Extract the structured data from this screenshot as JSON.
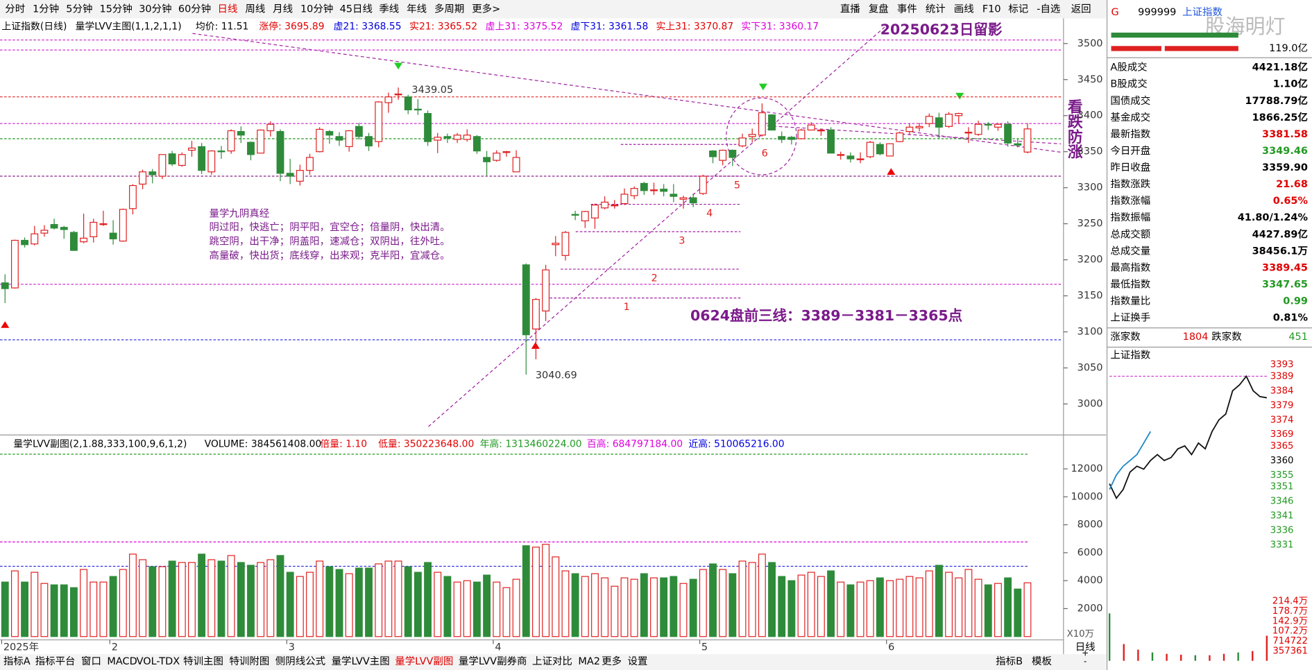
{
  "toolbar": {
    "periods": [
      "分时",
      "1分钟",
      "5分钟",
      "15分钟",
      "30分钟",
      "60分钟",
      {
        "label": "日线",
        "color": "#e00000"
      },
      "周线",
      "月线",
      "10分钟",
      "45日线",
      "季线",
      "年线",
      "多周期",
      "更多>"
    ],
    "actions": [
      "直播",
      "复盘",
      "事件",
      "统计",
      "画线",
      "F10",
      "标记",
      "-自选",
      "返回"
    ]
  },
  "info_line": [
    {
      "text": "上证指数(日线)",
      "color": "#000000"
    },
    {
      "text": "量学LVV主图(1,1,2,1,1)",
      "color": "#000000"
    },
    {
      "text": "均价: 11.51",
      "color": "#000000"
    },
    {
      "text": "涨停: 3695.89",
      "color": "#e00000"
    },
    {
      "text": "虚21: 3368.55",
      "color": "#0000dd"
    },
    {
      "text": "实21: 3365.52",
      "color": "#e00000"
    },
    {
      "text": "虚上31: 3375.52",
      "color": "#dd00dd"
    },
    {
      "text": "虚下31: 3361.58",
      "color": "#0000dd"
    },
    {
      "text": "实上31: 3370.87",
      "color": "#e00000"
    },
    {
      "text": "实下31: 3360.17",
      "color": "#dd00dd"
    }
  ],
  "volume_line": [
    {
      "text": "量学LVV副图(2,1.88,333,100,9,6,1,2)",
      "color": "#000000"
    },
    {
      "text": "VOLUME: 384561408.00",
      "color": "#000000"
    },
    {
      "text": "倍量: 1.10",
      "color": "#e00000"
    },
    {
      "text": "低量: 350223648.00",
      "color": "#e00000"
    },
    {
      "text": "年高: 1313460224.00",
      "color": "#229922"
    },
    {
      "text": "百高: 684797184.00",
      "color": "#dd00dd"
    },
    {
      "text": "近高: 510065216.00",
      "color": "#0000dd"
    }
  ],
  "chart_data": {
    "type": "candlestick",
    "up_color": "#e02020",
    "down_color": "#2e8b3a",
    "ylim": [
      2957,
      3514
    ],
    "yticks": [
      3000,
      3050,
      3100,
      3150,
      3200,
      3250,
      3300,
      3350,
      3400,
      3450,
      3500
    ],
    "volume_ylim": [
      0,
      13230
    ],
    "volume_yticks": [
      2000,
      4000,
      6000,
      8000,
      10000,
      12000
    ],
    "volume_unit": "X10万",
    "levels": [
      {
        "value": 3505,
        "color": "#cc33cc"
      },
      {
        "value": 3491,
        "color": "#cc33cc"
      },
      {
        "value": 3426,
        "color": "#e02020"
      },
      {
        "value": 3389,
        "color": "#cc33cc"
      },
      {
        "value": 3368,
        "color": "#229922"
      },
      {
        "value": 3316,
        "color": "#882288"
      },
      {
        "value": 3166,
        "color": "#cc33cc"
      },
      {
        "value": 3089,
        "color": "#2222dd"
      }
    ],
    "volume_levels": [
      {
        "value": 13050,
        "color": "#229922"
      },
      {
        "value": 6770,
        "color": "#dd00dd"
      },
      {
        "value": 5030,
        "color": "#2222dd"
      }
    ],
    "steps": [
      {
        "label": "1",
        "value": 3147
      },
      {
        "label": "2",
        "value": 3187
      },
      {
        "label": "3",
        "value": 3239
      },
      {
        "label": "4",
        "value": 3277
      },
      {
        "label": "5",
        "value": 3316
      },
      {
        "label": "6",
        "value": 3360
      }
    ],
    "months": [
      {
        "label": "2025年",
        "candles": [
          [
            3168,
            3180,
            3140,
            3160,
            3900
          ],
          [
            3161,
            3228,
            3160,
            3227,
            4700
          ],
          [
            3227,
            3231,
            3217,
            3221,
            3900
          ],
          [
            3222,
            3247,
            3220,
            3236,
            4600
          ],
          [
            3237,
            3248,
            3232,
            3241,
            3800
          ],
          [
            3249,
            3257,
            3242,
            3244,
            3700
          ],
          [
            3245,
            3247,
            3229,
            3242,
            3700
          ],
          [
            3238,
            3240,
            3213,
            3213,
            3500
          ],
          [
            3225,
            3264,
            3223,
            3230,
            4800
          ],
          [
            3232,
            3257,
            3224,
            3252,
            3900
          ],
          [
            3249,
            3268,
            3247,
            3250,
            3900
          ]
        ]
      },
      {
        "label": "2",
        "candles": [
          [
            3237,
            3255,
            3221,
            3229,
            4300
          ],
          [
            3226,
            3271,
            3225,
            3270,
            4800
          ],
          [
            3271,
            3305,
            3263,
            3303,
            5900
          ],
          [
            3305,
            3325,
            3298,
            3322,
            5500
          ],
          [
            3322,
            3326,
            3306,
            3318,
            5000
          ],
          [
            3316,
            3346,
            3312,
            3346,
            5000
          ],
          [
            3347,
            3351,
            3330,
            3333,
            5400
          ],
          [
            3331,
            3349,
            3329,
            3346,
            5300
          ],
          [
            3352,
            3365,
            3343,
            3355,
            5300
          ],
          [
            3357,
            3362,
            3319,
            3324,
            5900
          ],
          [
            3322,
            3352,
            3318,
            3351,
            5500
          ],
          [
            3351,
            3358,
            3340,
            3350,
            5400
          ],
          [
            3351,
            3381,
            3347,
            3379,
            5800
          ],
          [
            3378,
            3385,
            3362,
            3373,
            5300
          ],
          [
            3363,
            3364,
            3338,
            3346,
            5100
          ],
          [
            3348,
            3381,
            3348,
            3380,
            5300
          ],
          [
            3379,
            3392,
            3371,
            3388,
            5500
          ],
          [
            3378,
            3381,
            3309,
            3320,
            5800
          ]
        ]
      },
      {
        "label": "3",
        "candles": [
          [
            3320,
            3340,
            3305,
            3316,
            4600
          ],
          [
            3309,
            3332,
            3303,
            3324,
            4300
          ],
          [
            3324,
            3347,
            3318,
            3342,
            4600
          ],
          [
            3350,
            3384,
            3349,
            3381,
            5400
          ],
          [
            3378,
            3380,
            3361,
            3373,
            5000
          ],
          [
            3371,
            3377,
            3358,
            3366,
            4800
          ],
          [
            3357,
            3380,
            3350,
            3379,
            4500
          ],
          [
            3385,
            3390,
            3367,
            3371,
            4900
          ],
          [
            3371,
            3376,
            3351,
            3358,
            4900
          ],
          [
            3364,
            3420,
            3356,
            3419,
            5200
          ],
          [
            3418,
            3432,
            3404,
            3426,
            5400
          ],
          [
            3430,
            3439,
            3422,
            3430,
            5400
          ],
          [
            3426,
            3429,
            3402,
            3408,
            5000
          ],
          [
            3409,
            3423,
            3401,
            3408,
            4600
          ],
          [
            3403,
            3407,
            3358,
            3364,
            5300
          ],
          [
            3366,
            3376,
            3348,
            3370,
            4600
          ],
          [
            3371,
            3375,
            3362,
            3369,
            4300
          ],
          [
            3367,
            3376,
            3362,
            3373,
            3900
          ],
          [
            3367,
            3381,
            3364,
            3373,
            4000
          ],
          [
            3371,
            3373,
            3347,
            3351,
            3900
          ],
          [
            3342,
            3351,
            3317,
            3336,
            4400
          ]
        ]
      },
      {
        "label": "4",
        "candles": [
          [
            3338,
            3352,
            3336,
            3348,
            3900
          ],
          [
            3349,
            3351,
            3343,
            3350,
            3500
          ],
          [
            3322,
            3352,
            3322,
            3342,
            4100
          ],
          [
            3193,
            3195,
            3040.69,
            3096,
            6500
          ],
          [
            3104,
            3147,
            3062,
            3145,
            6400
          ],
          [
            3129,
            3193,
            3115,
            3186,
            6600
          ],
          [
            3221,
            3233,
            3205,
            3223,
            5700
          ],
          [
            3206,
            3240,
            3199,
            3238,
            4700
          ],
          [
            3263,
            3268,
            3255,
            3262,
            4500
          ],
          [
            3254,
            3268,
            3244,
            3267,
            4300
          ],
          [
            3258,
            3278,
            3243,
            3276,
            4500
          ],
          [
            3272,
            3288,
            3270,
            3280,
            4200
          ],
          [
            3275,
            3283,
            3271,
            3276,
            3600
          ],
          [
            3278,
            3299,
            3276,
            3291,
            4200
          ],
          [
            3289,
            3302,
            3284,
            3299,
            4100
          ],
          [
            3306,
            3308,
            3290,
            3296,
            4500
          ],
          [
            3296,
            3307,
            3290,
            3297,
            4200
          ],
          [
            3298,
            3305,
            3288,
            3295,
            4200
          ],
          [
            3291,
            3305,
            3280,
            3288,
            4300
          ],
          [
            3284,
            3289,
            3271,
            3286,
            3800
          ],
          [
            3286,
            3292,
            3273,
            3279,
            4100
          ]
        ]
      },
      {
        "label": "5",
        "candles": [
          [
            3292,
            3318,
            3290,
            3316,
            4800
          ],
          [
            3351,
            3352,
            3334,
            3343,
            5200
          ],
          [
            3338,
            3353,
            3331,
            3352,
            4800
          ],
          [
            3352,
            3353,
            3330,
            3342,
            4500
          ],
          [
            3358,
            3375,
            3356,
            3369,
            5400
          ],
          [
            3371,
            3382,
            3363,
            3374,
            5300
          ],
          [
            3373,
            3417,
            3371,
            3404,
            5900
          ],
          [
            3401,
            3402,
            3380,
            3380,
            5300
          ],
          [
            3371,
            3378,
            3362,
            3367,
            4300
          ],
          [
            3370,
            3372,
            3360,
            3367,
            4000
          ],
          [
            3368,
            3382,
            3367,
            3380,
            4400
          ],
          [
            3380,
            3391,
            3380,
            3387,
            4600
          ],
          [
            3380,
            3382,
            3372,
            3380,
            4300
          ],
          [
            3380,
            3384,
            3348,
            3348,
            4700
          ],
          [
            3345,
            3350,
            3339,
            3346,
            3900
          ],
          [
            3344,
            3349,
            3335,
            3340,
            3700
          ],
          [
            3340,
            3349,
            3334,
            3340,
            3900
          ],
          [
            3343,
            3365,
            3341,
            3363,
            4000
          ],
          [
            3360,
            3363,
            3345,
            3347,
            4200
          ]
        ]
      },
      {
        "label": "6",
        "candles": [
          [
            3344,
            3361,
            3344,
            3361,
            4000
          ],
          [
            3364,
            3378,
            3363,
            3376,
            4100
          ],
          [
            3378,
            3389,
            3373,
            3384,
            4300
          ],
          [
            3383,
            3390,
            3378,
            3385,
            4200
          ],
          [
            3389,
            3403,
            3384,
            3399,
            4700
          ],
          [
            3397,
            3404,
            3368,
            3384,
            5100
          ],
          [
            3385,
            3405,
            3383,
            3402,
            4600
          ],
          [
            3400,
            3404,
            3389,
            3403,
            4200
          ],
          [
            3377,
            3384,
            3362,
            3377,
            4800
          ],
          [
            3374,
            3393,
            3372,
            3388,
            4100
          ],
          [
            3388,
            3391,
            3380,
            3387,
            3700
          ],
          [
            3384,
            3390,
            3379,
            3388,
            3800
          ],
          [
            3388,
            3392,
            3357,
            3362,
            4200
          ],
          [
            3361,
            3368,
            3356,
            3359,
            3400
          ],
          [
            3349.46,
            3389.45,
            3347.65,
            3381.58,
            3846
          ]
        ]
      }
    ]
  },
  "annotations": {
    "snapshot": "20250623日留影",
    "bearish": "看跌防涨",
    "low_label": "3040.69",
    "high_label": "3439.05",
    "poem_title": "量学九阴真经",
    "poem": [
      "阴过阳，快逃亡；阴平阳，宜空仓；倍量阴，快出清。",
      "跳空阴，出干净；阴盖阳，速减仓；双阴出，往外吐。",
      "高量破，快出货；底线穿，出来观；克半阳，宜减仓。"
    ],
    "plan": "0624盘前三线：3389－3381－3365点"
  },
  "bottom_tabs": [
    "指标A",
    "指标平台",
    "窗口",
    "MACD",
    "VOL-TDX",
    "特训主图",
    "特训附图",
    "侧阴线公式",
    "量学LVV主图",
    {
      "label": "量学LVV副图",
      "color": "#e00000"
    },
    "量学LVV副券商",
    "上证对比",
    "MA2",
    "更多",
    "设置"
  ],
  "bottom_right": [
    "指标B",
    "模板"
  ],
  "side_buttons": [
    "日线",
    "+",
    "-"
  ],
  "panel": {
    "code": "999999",
    "name": "上证指数",
    "flag": "G",
    "watermark": "股海明灯",
    "amount": "119.0亿",
    "rows": [
      {
        "label": "A股成交",
        "value": "4421.18亿",
        "color": "#000000"
      },
      {
        "label": "B股成交",
        "value": "1.10亿",
        "color": "#000000"
      },
      {
        "label": "国债成交",
        "value": "17788.79亿",
        "color": "#000000"
      },
      {
        "label": "基金成交",
        "value": "1866.25亿",
        "color": "#000000"
      },
      {
        "label": "最新指数",
        "value": "3381.58",
        "color": "#e00000"
      },
      {
        "label": "今日开盘",
        "value": "3349.46",
        "color": "#229922"
      },
      {
        "label": "昨日收盘",
        "value": "3359.90",
        "color": "#000000"
      },
      {
        "label": "指数涨跌",
        "value": "21.68",
        "color": "#e00000"
      },
      {
        "label": "指数涨幅",
        "value": "0.65%",
        "color": "#e00000"
      },
      {
        "label": "指数振幅",
        "value": "41.80/1.24%",
        "color": "#000000"
      },
      {
        "label": "总成交额",
        "value": "4427.89亿",
        "color": "#000000"
      },
      {
        "label": "总成交量",
        "value": "38456.1万",
        "color": "#000000"
      },
      {
        "label": "最高指数",
        "value": "3389.45",
        "color": "#e00000"
      },
      {
        "label": "最低指数",
        "value": "3347.65",
        "color": "#229922"
      },
      {
        "label": "指数量比",
        "value": "0.99",
        "color": "#229922"
      },
      {
        "label": "上证换手",
        "value": "0.81%",
        "color": "#000000"
      }
    ],
    "breadth": {
      "up_label": "涨家数",
      "up": "1804",
      "down_label": "跌家数",
      "down": "451"
    },
    "intraday": {
      "title": "上证指数",
      "ylim": [
        3329.9,
        3394.7
      ],
      "yticks": [
        3393,
        3389,
        3384,
        3379,
        3374,
        3369,
        3365,
        3360,
        3355,
        3351,
        3346,
        3341,
        3336,
        3331
      ],
      "prices": [
        3352,
        3347,
        3350,
        3356,
        3358,
        3357,
        3360,
        3362,
        3360,
        3361,
        3364,
        3365,
        3362,
        3366,
        3364,
        3370,
        3374,
        3376,
        3384,
        3386,
        3389,
        3384,
        3382,
        3381.58
      ],
      "average": [
        3350,
        3355,
        3358,
        3360,
        3362,
        3366,
        3370
      ],
      "volume_ylim": [
        0,
        3900000
      ],
      "volume_yticks": [
        {
          "value": 2144000,
          "label": "214.4万"
        },
        {
          "value": 1787000,
          "label": "178.7万"
        },
        {
          "value": 1429000,
          "label": "142.9万"
        },
        {
          "value": 1072000,
          "label": "107.2万"
        },
        714722,
        357361
      ],
      "volumes": [
        1700000,
        600000,
        400000,
        300000,
        250000,
        220000,
        200000,
        200000,
        250000,
        300000,
        350000,
        900000
      ]
    }
  }
}
